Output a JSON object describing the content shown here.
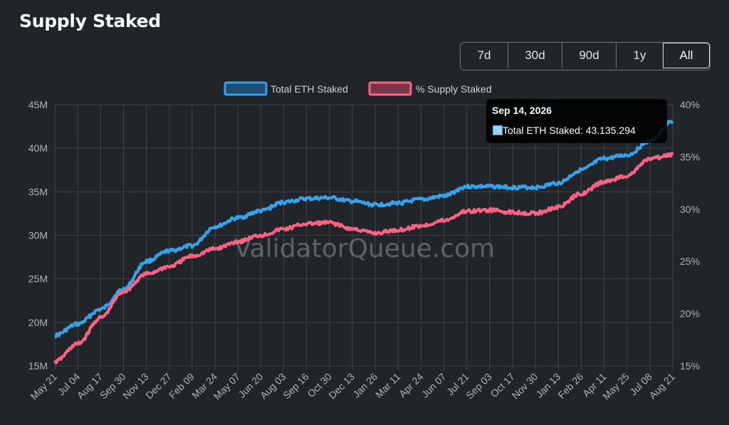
{
  "page": {
    "title": "Supply Staked"
  },
  "range_buttons": [
    {
      "label": "7d",
      "active": false
    },
    {
      "label": "30d",
      "active": false
    },
    {
      "label": "90d",
      "active": false
    },
    {
      "label": "1y",
      "active": false
    },
    {
      "label": "All",
      "active": true
    }
  ],
  "watermark": "ValidatorQueue.com",
  "tooltip": {
    "title": "Sep 14, 2026",
    "label": "Total ETH Staked: 43.135.294"
  },
  "colors": {
    "total": "#36a2eb",
    "total_fill": "#9ad0f5",
    "pct": "#ff6384",
    "pct_fill": "#ffb1c1",
    "grid": "#3f454c"
  },
  "chart_data": {
    "type": "line",
    "legend_position": "top",
    "grid": true,
    "x_tick_labels": [
      "May 21",
      "Jul 04",
      "Aug 17",
      "Sep 30",
      "Nov 13",
      "Dec 27",
      "Feb 09",
      "Mar 24",
      "May 07",
      "Jun 20",
      "Aug 03",
      "Sep 16",
      "Oct 30",
      "Dec 13",
      "Jan 26",
      "Mar 11",
      "Apr 24",
      "Jun 07",
      "Jul 21",
      "Sep 03",
      "Oct 17",
      "Nov 30",
      "Jan 13",
      "Feb 26",
      "Apr 11",
      "May 25",
      "Jul 08",
      "Aug 21"
    ],
    "y_left": {
      "ticks": [
        "15M",
        "20M",
        "25M",
        "30M",
        "35M",
        "40M",
        "45M"
      ],
      "range": [
        15,
        45
      ]
    },
    "y_right": {
      "ticks": [
        "15%",
        "20%",
        "25%",
        "30%",
        "35%",
        "40%"
      ],
      "range": [
        15,
        40
      ]
    },
    "series": [
      {
        "name": "Total ETH Staked",
        "axis": "left",
        "values": [
          18.5,
          19.8,
          21.5,
          23.8,
          27.0,
          28.2,
          28.8,
          31.0,
          32.0,
          32.8,
          33.8,
          34.2,
          34.3,
          33.9,
          33.5,
          33.7,
          34.1,
          34.5,
          35.6,
          35.6,
          35.5,
          35.5,
          36.0,
          37.5,
          38.8,
          39.2,
          40.8,
          43.1
        ]
      },
      {
        "name": "% Supply Staked",
        "axis": "right",
        "values": [
          15.4,
          17.1,
          19.6,
          22.1,
          23.8,
          24.5,
          25.5,
          26.2,
          26.9,
          27.5,
          28.1,
          28.6,
          28.7,
          28.1,
          27.7,
          28.0,
          28.4,
          28.9,
          29.8,
          29.9,
          29.7,
          29.6,
          30.2,
          31.5,
          32.6,
          33.2,
          34.8,
          35.2
        ]
      }
    ]
  }
}
